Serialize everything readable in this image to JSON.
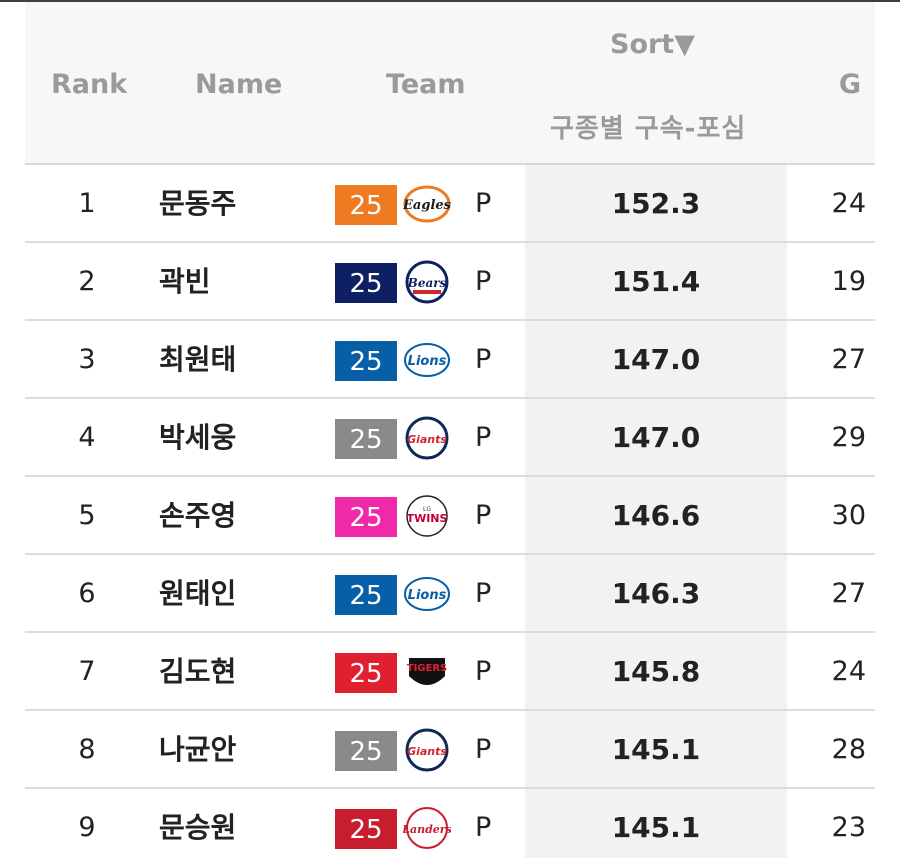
{
  "header": {
    "rank": "Rank",
    "name": "Name",
    "team": "Team",
    "sort": "Sort▼",
    "pitch_metric": "구종별 구속-포심",
    "games": "G"
  },
  "rows": [
    {
      "rank": "1",
      "name": "문동주",
      "year": "25",
      "team_logo": "eagles-logo",
      "team_color": "#ee7b22",
      "pos": "P",
      "value": "152.3",
      "g": "24"
    },
    {
      "rank": "2",
      "name": "곽빈",
      "year": "25",
      "team_logo": "bears-logo",
      "team_color": "#0e1f63",
      "pos": "P",
      "value": "151.4",
      "g": "19"
    },
    {
      "rank": "3",
      "name": "최원태",
      "year": "25",
      "team_logo": "lions-logo",
      "team_color": "#075fa8",
      "pos": "P",
      "value": "147.0",
      "g": "27"
    },
    {
      "rank": "4",
      "name": "박세웅",
      "year": "25",
      "team_logo": "giants-logo",
      "team_color": "#8a8a8a",
      "pos": "P",
      "value": "147.0",
      "g": "29"
    },
    {
      "rank": "5",
      "name": "손주영",
      "year": "25",
      "team_logo": "twins-logo",
      "team_color": "#ee2aa8",
      "pos": "P",
      "value": "146.6",
      "g": "30"
    },
    {
      "rank": "6",
      "name": "원태인",
      "year": "25",
      "team_logo": "lions-logo",
      "team_color": "#075fa8",
      "pos": "P",
      "value": "146.3",
      "g": "27"
    },
    {
      "rank": "7",
      "name": "김도현",
      "year": "25",
      "team_logo": "tigers-logo",
      "team_color": "#e0202e",
      "pos": "P",
      "value": "145.8",
      "g": "24"
    },
    {
      "rank": "8",
      "name": "나균안",
      "year": "25",
      "team_logo": "giants-logo",
      "team_color": "#8a8a8a",
      "pos": "P",
      "value": "145.1",
      "g": "28"
    },
    {
      "rank": "9",
      "name": "문승원",
      "year": "25",
      "team_logo": "landers-logo",
      "team_color": "#c81d2e",
      "pos": "P",
      "value": "145.1",
      "g": "23"
    }
  ]
}
